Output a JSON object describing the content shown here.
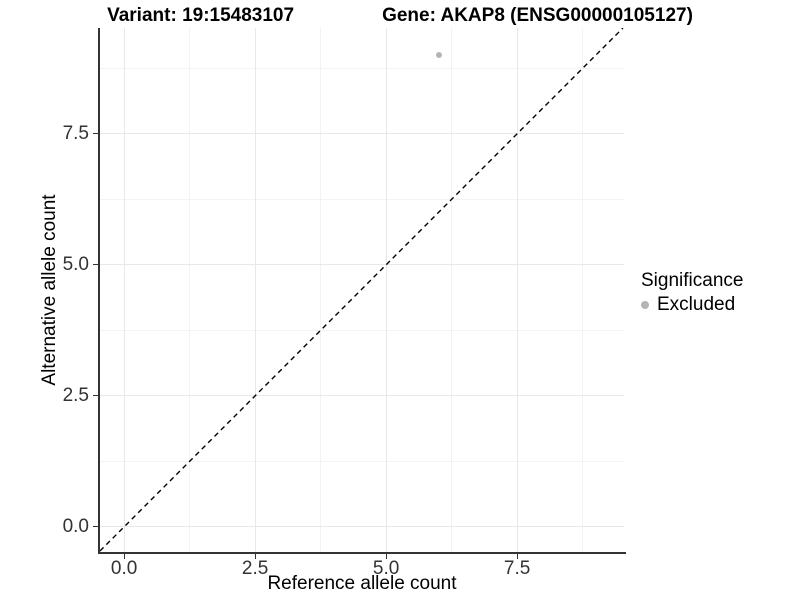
{
  "figure": {
    "title_left": "Variant: 19:15483107",
    "title_right": "Gene: AKAP8 (ENSG00000105127)"
  },
  "chart_data": {
    "type": "scatter",
    "title": "Variant: 19:15483107   Gene: AKAP8 (ENSG00000105127)",
    "xlabel": "Reference allele count",
    "ylabel": "Alternative allele count",
    "xlim": [
      -0.46,
      9.54
    ],
    "ylim": [
      -0.48,
      9.52
    ],
    "x_major_ticks": [
      0,
      2.5,
      5,
      7.5
    ],
    "x_tick_labels": [
      "0.0",
      "2.5",
      "5.0",
      "7.5"
    ],
    "x_minor_ticks": [
      1.25,
      3.75,
      6.25,
      8.75
    ],
    "y_major_ticks": [
      0,
      2.5,
      5,
      7.5
    ],
    "y_tick_labels": [
      "0.0",
      "2.5",
      "5.0",
      "7.5"
    ],
    "y_minor_ticks": [
      1.25,
      3.75,
      6.25,
      8.75
    ],
    "grid": true,
    "legend_position": "right",
    "reference_line": {
      "slope": 1,
      "intercept": 0,
      "style": "dashed",
      "color": "#000000"
    },
    "series": [
      {
        "name": "Excluded",
        "color": "#b5b5b5",
        "points": [
          {
            "x": 6,
            "y": 9
          }
        ]
      }
    ],
    "legend": {
      "title": "Significance",
      "items": [
        {
          "label": "Excluded",
          "color": "#b5b5b5"
        }
      ]
    }
  }
}
